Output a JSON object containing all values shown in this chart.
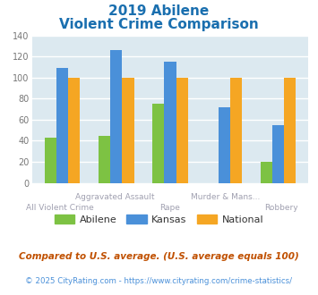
{
  "title_line1": "2019 Abilene",
  "title_line2": "Violent Crime Comparison",
  "categories": [
    "All Violent Crime",
    "Aggravated Assault",
    "Rape",
    "Murder & Mans...",
    "Robbery"
  ],
  "abilene": [
    43,
    45,
    75,
    0,
    20
  ],
  "kansas": [
    109,
    126,
    115,
    72,
    55
  ],
  "national": [
    100,
    100,
    100,
    100,
    100
  ],
  "colors": {
    "abilene": "#7dc243",
    "kansas": "#4a90d9",
    "national": "#f5a623"
  },
  "ylim": [
    0,
    140
  ],
  "yticks": [
    0,
    20,
    40,
    60,
    80,
    100,
    120,
    140
  ],
  "title_color": "#1a6faf",
  "bg_color": "#dce9f0",
  "grid_color": "#ffffff",
  "footnote1": "Compared to U.S. average. (U.S. average equals 100)",
  "footnote2": "© 2025 CityRating.com - https://www.cityrating.com/crime-statistics/",
  "footnote1_color": "#c05000",
  "footnote2_color": "#4a90d9",
  "label_color": "#a0a0b0",
  "bar_width": 0.22
}
